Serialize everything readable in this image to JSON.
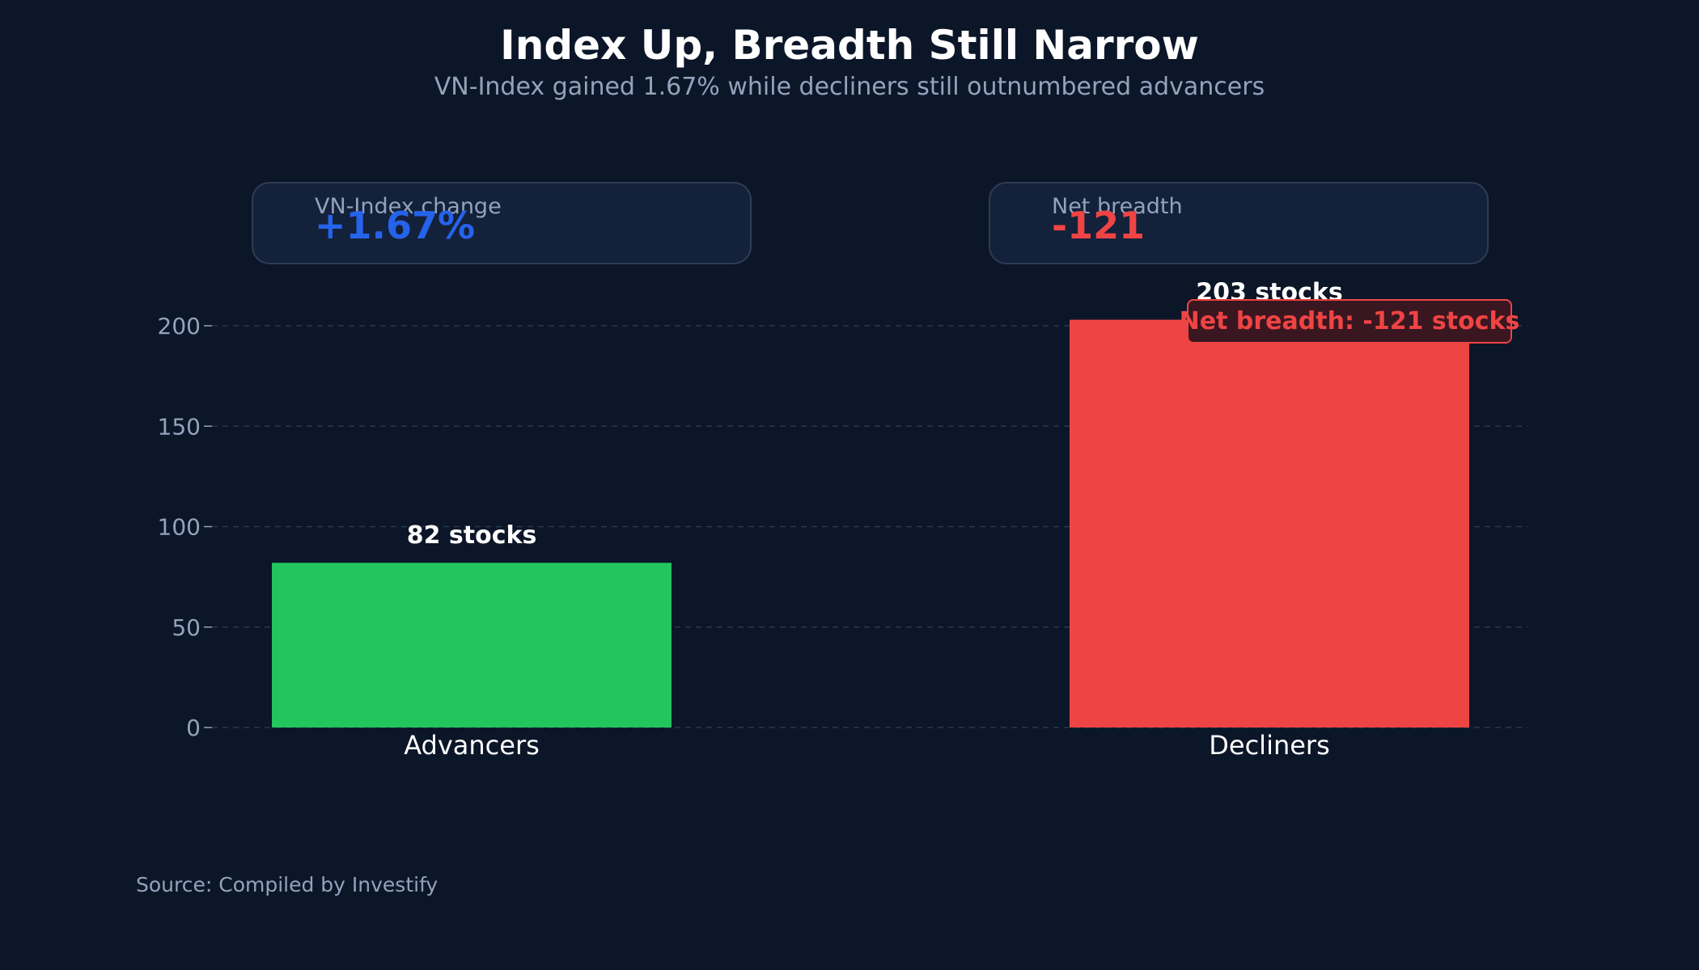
{
  "header": {
    "title": "Index Up, Breadth Still Narrow",
    "subtitle": "VN-Index gained 1.67% while decliners still outnumbered advancers"
  },
  "kpis": [
    {
      "label": "VN-Index change",
      "value": "+1.67%",
      "color": "#2563eb"
    },
    {
      "label": "Net breadth",
      "value": "-121",
      "color": "#ef4444"
    }
  ],
  "source": "Source: Compiled by Investify",
  "chart_data": {
    "type": "bar",
    "categories": [
      "Advancers",
      "Decliners"
    ],
    "values": [
      82,
      203
    ],
    "data_labels": [
      "82 stocks",
      "203 stocks"
    ],
    "colors": [
      "#22c55e",
      "#ef4444"
    ],
    "ylim": [
      0,
      200
    ],
    "yticks": [
      0,
      50,
      100,
      150,
      200
    ],
    "grid": true,
    "xlabel": "",
    "ylabel": "",
    "annotation": {
      "text": "Net breadth: -121 stocks",
      "color": "#ef4444"
    }
  }
}
